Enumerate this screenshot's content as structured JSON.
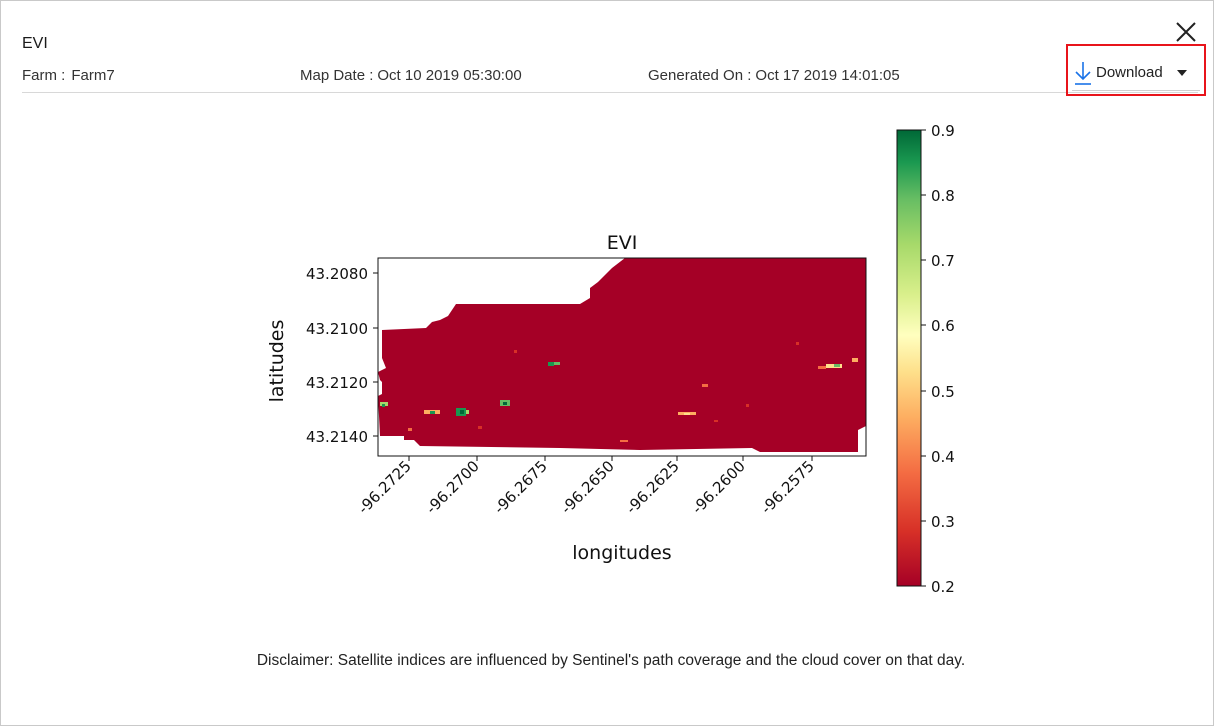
{
  "dialog": {
    "title": "EVI",
    "farm_label": "Farm :",
    "farm_value": "Farm7",
    "map_date_label": "Map Date :",
    "map_date_value": "Oct 10 2019 05:30:00",
    "generated_label": "Generated On :",
    "generated_value": "Oct 17 2019 14:01:05",
    "download_label": "Download",
    "disclaimer": "Disclaimer: Satellite indices are influenced by Sentinel's path coverage and the cloud cover on that day.",
    "icons": {
      "close": "close-icon",
      "download": "download-arrow-icon",
      "dropdown": "chevron-down-icon"
    },
    "colors": {
      "highlight": "#e8141b",
      "download_icon": "#1a73e8"
    }
  },
  "chart_data": {
    "type": "heatmap",
    "title": "EVI",
    "xlabel": "longitudes",
    "ylabel": "latitudes",
    "x_ticks": [
      "-96.2725",
      "-96.2700",
      "-96.2675",
      "-96.2650",
      "-96.2625",
      "-96.2600",
      "-96.2575"
    ],
    "y_ticks": [
      "43.2080",
      "43.2100",
      "43.2120",
      "43.2140"
    ],
    "xlim": [
      -96.2743,
      -96.2553
    ],
    "ylim": [
      43.2147,
      43.2073
    ],
    "dominant_value": 0.2,
    "colormap": "RdYlGn",
    "colorbar": {
      "min": 0.2,
      "max": 0.9,
      "ticks": [
        "0.2",
        "0.3",
        "0.4",
        "0.5",
        "0.6",
        "0.7",
        "0.8",
        "0.9"
      ]
    }
  }
}
